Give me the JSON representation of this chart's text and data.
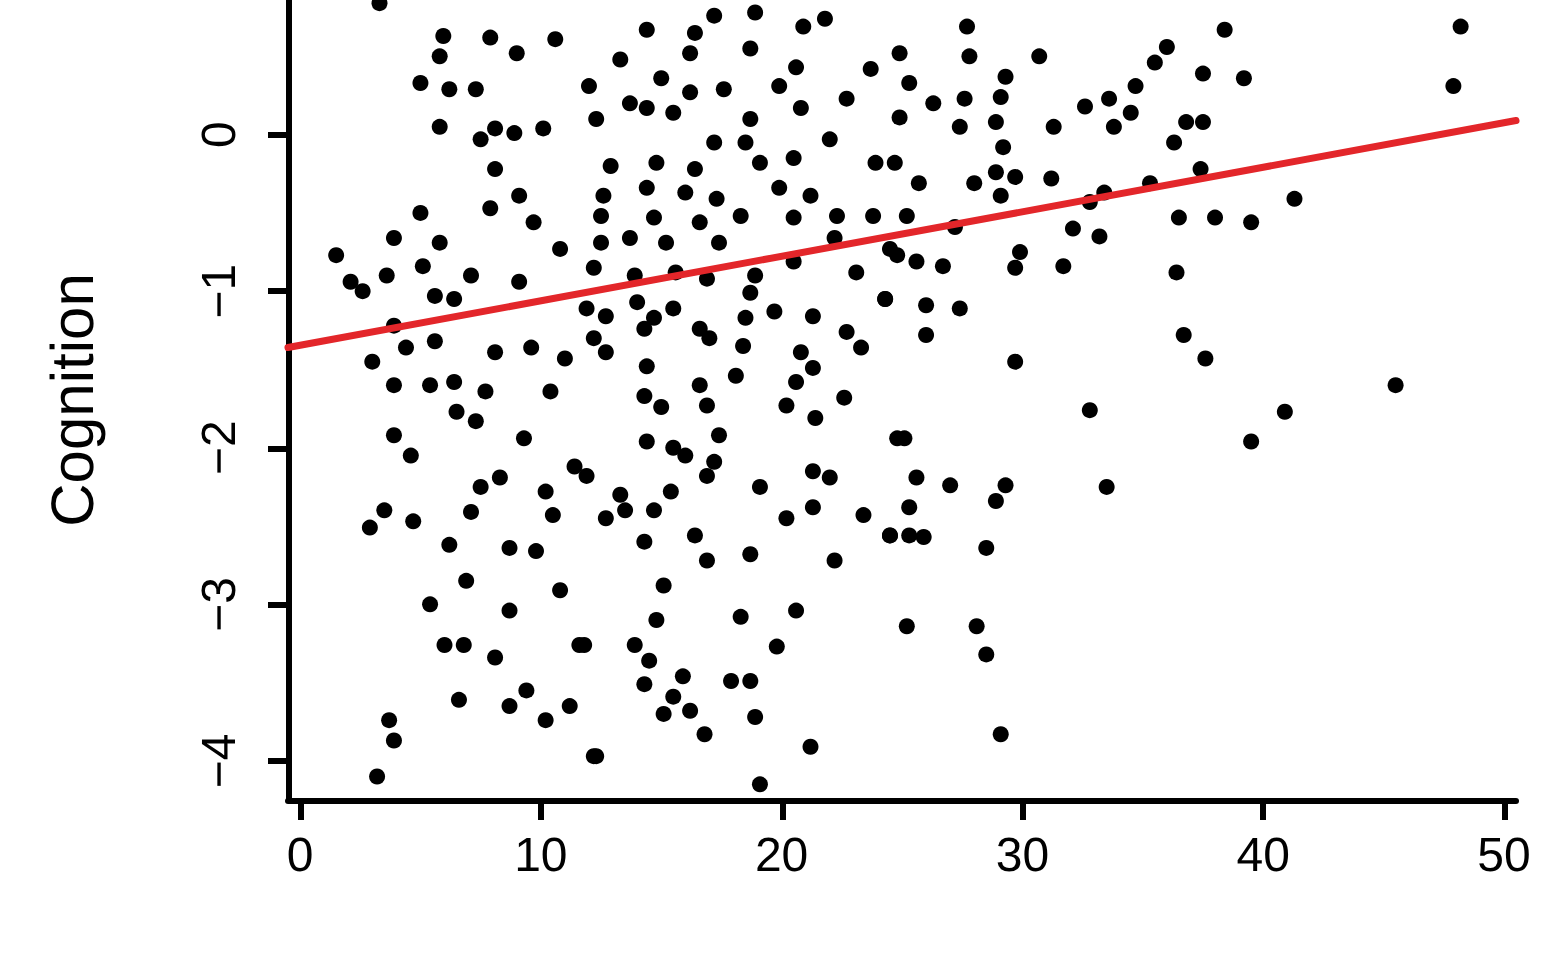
{
  "chart_data": {
    "type": "scatter",
    "ylabel": "Cognition",
    "xlim": [
      -0.5,
      50.5
    ],
    "xticks": [
      0,
      10,
      20,
      30,
      40,
      50
    ],
    "ylim": [
      -4.25,
      0.86
    ],
    "yticks": [
      -4,
      -3,
      -2,
      -1,
      0
    ],
    "grid": false,
    "marker": "circle",
    "series": [
      {
        "type": "scatter",
        "color": "#000000",
        "x": [
          3.3,
          5.95,
          5.8,
          7.9,
          9.0,
          10.6,
          5.0,
          6.2,
          7.3,
          5.8,
          7.5,
          8.1,
          8.9,
          10.1,
          8.1,
          9.1,
          7.9,
          9.7,
          5.0,
          3.9,
          5.8,
          1.5,
          2.1,
          2.6,
          3.6,
          5.1,
          5.6,
          7.1,
          6.4,
          9.1,
          10.8,
          3.0,
          3.9,
          4.4,
          5.6,
          8.1,
          9.6,
          11.0,
          3.9,
          5.4,
          6.4,
          7.7,
          10.4,
          6.5,
          7.3,
          3.9,
          4.6,
          9.3,
          11.4,
          10.2,
          8.3,
          7.5,
          7.1,
          10.5,
          3.5,
          2.9,
          4.7,
          6.2,
          8.7,
          9.8,
          6.9,
          10.8,
          5.4,
          8.7,
          6.0,
          6.8,
          8.1,
          11.6,
          6.6,
          8.7,
          9.4,
          11.2,
          10.2,
          3.7,
          3.9,
          3.2,
          12.2,
          14.4,
          17.2,
          18.9,
          16.4,
          20.9,
          21.8,
          13.3,
          16.2,
          18.7,
          20.6,
          23.7,
          12.0,
          15.0,
          17.6,
          19.9,
          13.7,
          16.2,
          18.7,
          22.7,
          12.3,
          14.4,
          15.5,
          20.8,
          17.2,
          18.5,
          22.0,
          12.9,
          14.8,
          16.4,
          19.1,
          20.5,
          23.9,
          12.6,
          14.4,
          16.0,
          17.3,
          19.9,
          21.2,
          12.5,
          14.7,
          16.6,
          18.3,
          20.5,
          22.3,
          23.8,
          12.5,
          13.7,
          15.2,
          17.4,
          22.2,
          24.5,
          12.2,
          13.9,
          15.6,
          16.9,
          18.9,
          20.5,
          23.1,
          11.9,
          14.0,
          15.5,
          18.7,
          24.3,
          12.7,
          14.7,
          16.6,
          18.5,
          19.7,
          21.3,
          12.2,
          14.3,
          17.0,
          18.4,
          20.8,
          22.7,
          23.3,
          12.7,
          14.4,
          18.1,
          20.6,
          21.3,
          14.3,
          16.6,
          20.2,
          21.4,
          22.6,
          15.0,
          16.9,
          17.4,
          14.4,
          15.5,
          16.0,
          17.2,
          11.9,
          13.3,
          15.4,
          16.9,
          19.1,
          21.3,
          22.0,
          24.8,
          12.7,
          13.5,
          14.7,
          20.2,
          21.3,
          23.4,
          24.5,
          14.3,
          16.4,
          16.9,
          18.7,
          22.2,
          15.1,
          11.8,
          13.9,
          14.8,
          18.3,
          19.8,
          20.6,
          14.5,
          14.3,
          15.9,
          17.9,
          18.7,
          15.5,
          15.1,
          16.2,
          16.8,
          18.9,
          21.2,
          12.3,
          19.1,
          27.7,
          38.4,
          48.2,
          47.9,
          24.9,
          27.8,
          30.7,
          36.0,
          37.5,
          39.2,
          35.5,
          34.7,
          29.3,
          25.3,
          26.3,
          27.6,
          29.1,
          33.6,
          24.9,
          27.4,
          28.9,
          31.3,
          32.6,
          33.8,
          34.5,
          36.3,
          36.8,
          37.5,
          29.2,
          24.7,
          25.7,
          28.0,
          28.9,
          29.7,
          31.2,
          29.1,
          32.8,
          33.4,
          35.3,
          37.4,
          41.3,
          25.2,
          27.2,
          32.1,
          33.2,
          36.5,
          38.0,
          39.5,
          24.8,
          25.6,
          26.7,
          29.9,
          29.7,
          31.7,
          36.4,
          24.3,
          26.0,
          27.4,
          26.0,
          36.7,
          37.6,
          29.7,
          45.5,
          40.9,
          32.8,
          39.5,
          25.1,
          25.6,
          27.0,
          29.3,
          28.9,
          33.5,
          25.3,
          24.5,
          25.3,
          25.9,
          28.5,
          25.2,
          28.1,
          28.5,
          29.1
        ],
        "values": [
          0.84,
          0.63,
          0.5,
          0.62,
          0.52,
          0.61,
          0.33,
          0.29,
          0.29,
          0.05,
          -0.03,
          0.04,
          0.01,
          0.04,
          -0.22,
          -0.39,
          -0.47,
          -0.56,
          -0.5,
          -0.66,
          -0.69,
          -0.77,
          -0.94,
          -1.0,
          -0.9,
          -0.84,
          -1.03,
          -0.9,
          -1.05,
          -0.94,
          -0.73,
          -1.45,
          -1.22,
          -1.36,
          -1.32,
          -1.39,
          -1.36,
          -1.43,
          -1.6,
          -1.6,
          -1.58,
          -1.64,
          -1.64,
          -1.77,
          -1.83,
          -1.92,
          -2.05,
          -1.94,
          -2.12,
          -2.28,
          -2.19,
          -2.25,
          -2.41,
          -2.43,
          -2.4,
          -2.51,
          -2.47,
          -2.62,
          -2.64,
          -2.66,
          -2.85,
          -2.91,
          -3.0,
          -3.04,
          -3.26,
          -3.26,
          -3.34,
          -3.26,
          -3.61,
          -3.65,
          -3.55,
          -3.65,
          -3.74,
          -3.74,
          -3.87,
          -4.1,
          -3.97,
          0.67,
          0.76,
          0.78,
          0.65,
          0.69,
          0.74,
          0.48,
          0.52,
          0.55,
          0.43,
          0.42,
          0.31,
          0.36,
          0.29,
          0.31,
          0.2,
          0.27,
          0.1,
          0.23,
          0.1,
          0.17,
          0.14,
          0.17,
          -0.05,
          -0.05,
          -0.03,
          -0.2,
          -0.18,
          -0.22,
          -0.18,
          -0.15,
          -0.18,
          -0.39,
          -0.34,
          -0.37,
          -0.41,
          -0.34,
          -0.39,
          -0.52,
          -0.53,
          -0.56,
          -0.52,
          -0.53,
          -0.52,
          -0.52,
          -0.69,
          -0.66,
          -0.69,
          -0.69,
          -0.66,
          -0.73,
          -0.85,
          -0.9,
          -0.88,
          -0.92,
          -0.9,
          -0.81,
          -0.88,
          -1.11,
          -1.07,
          -1.11,
          -1.01,
          -1.05,
          -1.16,
          -1.17,
          -1.24,
          -1.17,
          -1.13,
          -1.16,
          -1.3,
          -1.24,
          -1.3,
          -1.35,
          -1.39,
          -1.26,
          -1.36,
          -1.39,
          -1.48,
          -1.54,
          -1.58,
          -1.49,
          -1.67,
          -1.6,
          -1.73,
          -1.81,
          -1.68,
          -1.74,
          -1.73,
          -1.92,
          -1.96,
          -2.0,
          -2.05,
          -2.09,
          -2.18,
          -2.3,
          -2.28,
          -2.18,
          -2.25,
          -2.15,
          -2.19,
          -1.94,
          -2.45,
          -2.4,
          -2.4,
          -2.45,
          -2.38,
          -2.43,
          -2.56,
          -2.6,
          -2.56,
          -2.72,
          -2.68,
          -2.72,
          -2.88,
          -3.26,
          -3.26,
          -3.1,
          -3.08,
          -3.27,
          -3.04,
          -3.36,
          -3.51,
          -3.46,
          -3.49,
          -3.49,
          -3.59,
          -3.7,
          -3.68,
          -3.83,
          -3.72,
          -3.91,
          -3.97,
          -4.15,
          0.69,
          0.67,
          0.69,
          0.31,
          0.52,
          0.5,
          0.5,
          0.56,
          0.39,
          0.36,
          0.46,
          0.31,
          0.37,
          0.33,
          0.2,
          0.23,
          0.24,
          0.23,
          0.11,
          0.05,
          0.08,
          0.05,
          0.18,
          0.05,
          0.14,
          -0.05,
          0.08,
          0.08,
          -0.08,
          -0.18,
          -0.31,
          -0.31,
          -0.24,
          -0.27,
          -0.28,
          -0.39,
          -0.43,
          -0.37,
          -0.31,
          -0.22,
          -0.41,
          -0.52,
          -0.59,
          -0.6,
          -0.65,
          -0.53,
          -0.53,
          -0.56,
          -0.77,
          -0.81,
          -0.84,
          -0.75,
          -0.85,
          -0.84,
          -0.88,
          -1.05,
          -1.09,
          -1.11,
          -1.28,
          -1.28,
          -1.43,
          -1.45,
          -1.6,
          -1.77,
          -1.76,
          -1.96,
          -1.94,
          -2.19,
          -2.24,
          -2.24,
          -2.34,
          -2.25,
          -2.38,
          -2.56,
          -2.56,
          -2.57,
          -2.64,
          -3.14,
          -3.14,
          -3.32,
          -3.83
        ]
      },
      {
        "type": "line",
        "color": "#e3262a",
        "marker": "none",
        "line_style": "solid",
        "x": [
          -0.5,
          50.5
        ],
        "values": [
          -1.36,
          0.09
        ]
      }
    ]
  }
}
